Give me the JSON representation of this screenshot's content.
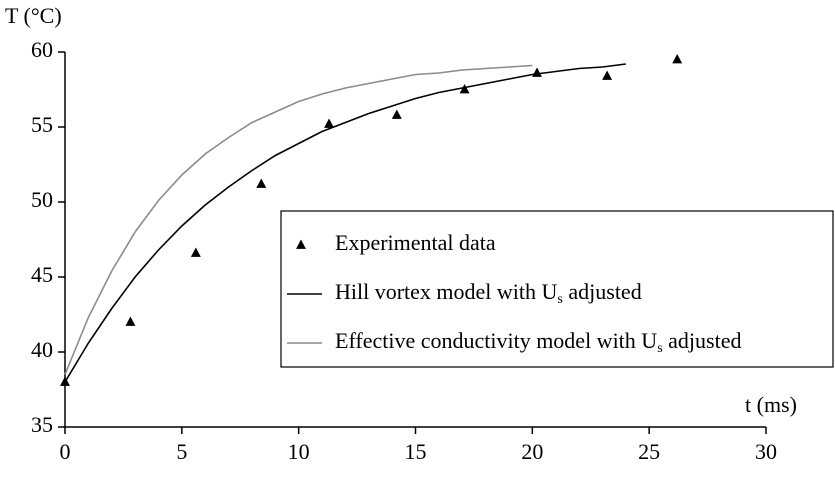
{
  "chart_data": {
    "type": "line",
    "y_label": "T (°C)",
    "x_label": "t (ms)",
    "xlim": [
      0,
      30
    ],
    "xticks": [
      0,
      5,
      10,
      15,
      20,
      25,
      30
    ],
    "ylim": [
      35,
      60
    ],
    "yticks": [
      35,
      40,
      45,
      50,
      55,
      60
    ],
    "grid": false,
    "legend": "lower right",
    "series": [
      {
        "name": "Experimental data",
        "color": "#000000",
        "style": "triangle",
        "x": [
          0,
          2.8,
          5.6,
          8.4,
          11.3,
          14.2,
          17.1,
          20.2,
          23.2,
          26.2
        ],
        "values": [
          38,
          42,
          46.6,
          51.2,
          55.2,
          55.8,
          57.5,
          58.6,
          58.4,
          59.5
        ]
      },
      {
        "name": "Hill vortex model with Us adjusted",
        "color": "#000000",
        "style": "line",
        "x": [
          0,
          1,
          2,
          3,
          4,
          5,
          6,
          7,
          8,
          9,
          10,
          11,
          12,
          13,
          14,
          15,
          16,
          17,
          18,
          19,
          20,
          21,
          22,
          23,
          24
        ],
        "values": [
          38,
          40.6,
          42.9,
          45.0,
          46.8,
          48.4,
          49.8,
          51.0,
          52.1,
          53.1,
          53.9,
          54.7,
          55.3,
          55.9,
          56.4,
          56.9,
          57.3,
          57.6,
          57.9,
          58.2,
          58.5,
          58.7,
          58.9,
          59.0,
          59.2
        ]
      },
      {
        "name": "Effective conductivity model with Us adjusted",
        "color": "#8c8c8c",
        "style": "line",
        "x": [
          0,
          1,
          2,
          3,
          4,
          5,
          6,
          7,
          8,
          9,
          10,
          11,
          12,
          13,
          14,
          15,
          16,
          17,
          18,
          19,
          20
        ],
        "values": [
          38.5,
          42.3,
          45.4,
          48.0,
          50.1,
          51.8,
          53.2,
          54.3,
          55.3,
          56.0,
          56.7,
          57.2,
          57.6,
          57.9,
          58.2,
          58.5,
          58.6,
          58.8,
          58.9,
          59.0,
          59.1
        ]
      }
    ]
  }
}
